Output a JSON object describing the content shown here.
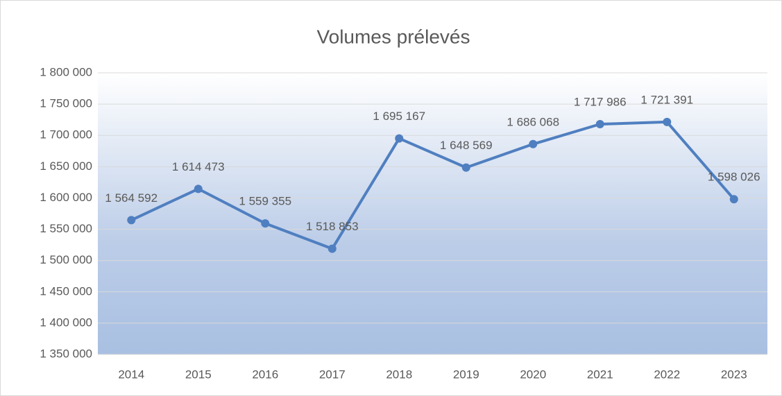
{
  "chart_data": {
    "type": "line",
    "title": "Volumes prélevés",
    "categories": [
      "2014",
      "2015",
      "2016",
      "2017",
      "2018",
      "2019",
      "2020",
      "2021",
      "2022",
      "2023"
    ],
    "series": [
      {
        "name": "Volumes prélevés",
        "color": "#4f7fc0",
        "values": [
          1564592,
          1614473,
          1559355,
          1518853,
          1695167,
          1648569,
          1686068,
          1717986,
          1721391,
          1598026
        ],
        "value_labels": [
          "1 564 592",
          "1 614 473",
          "1 559 355",
          "1 518 853",
          "1 695 167",
          "1 648 569",
          "1 686 068",
          "1 717 986",
          "1 721 391",
          "1 598 026"
        ]
      }
    ],
    "ylim": [
      1350000,
      1800000
    ],
    "yticks": [
      {
        "value": 1350000,
        "label": "1 350 000"
      },
      {
        "value": 1400000,
        "label": "1 400 000"
      },
      {
        "value": 1450000,
        "label": "1 450 000"
      },
      {
        "value": 1500000,
        "label": "1 500 000"
      },
      {
        "value": 1550000,
        "label": "1 550 000"
      },
      {
        "value": 1600000,
        "label": "1 600 000"
      },
      {
        "value": 1650000,
        "label": "1 650 000"
      },
      {
        "value": 1700000,
        "label": "1 700 000"
      },
      {
        "value": 1750000,
        "label": "1 750 000"
      },
      {
        "value": 1800000,
        "label": "1 800 000"
      }
    ],
    "grid": true
  }
}
